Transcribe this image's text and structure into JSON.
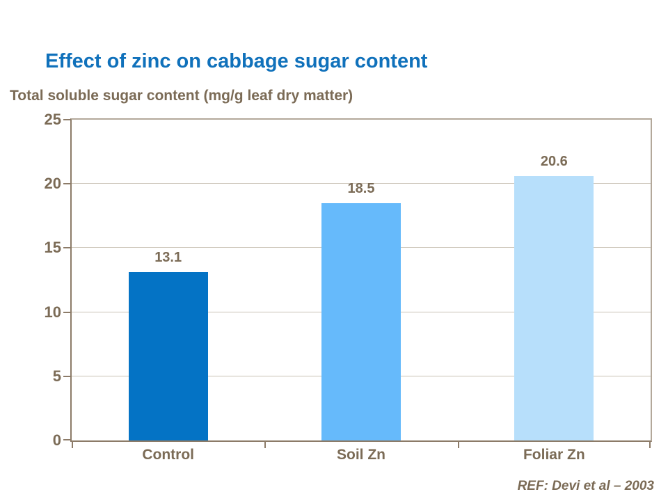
{
  "title": "Effect of zinc on cabbage sugar content",
  "subtitle": "Total soluble sugar content (mg/g leaf dry matter)",
  "reference": "REF: Devi et al – 2003",
  "colors": {
    "title_text": "#1071BB",
    "body_text": "#7B6B56",
    "axis_line": "#8C7B68",
    "plot_border": "#B3A89A",
    "gridline": "#C9C1B4",
    "bar_colors": [
      "#0473C5",
      "#66BAFB",
      "#B7DFFB"
    ]
  },
  "chart_data": {
    "type": "bar",
    "title": "Effect of zinc on cabbage sugar content",
    "ylabel": "Total soluble sugar content (mg/g leaf dry matter)",
    "categories": [
      "Control",
      "Soil Zn",
      "Foliar Zn"
    ],
    "values": [
      13.1,
      18.5,
      20.6
    ],
    "value_labels": [
      "13.1",
      "18.5",
      "20.6"
    ],
    "ylim": [
      0,
      25
    ],
    "yticks": [
      0,
      5,
      10,
      15,
      20,
      25
    ],
    "grid": true,
    "legend_position": "none",
    "annotation": "REF: Devi et al – 2003"
  }
}
